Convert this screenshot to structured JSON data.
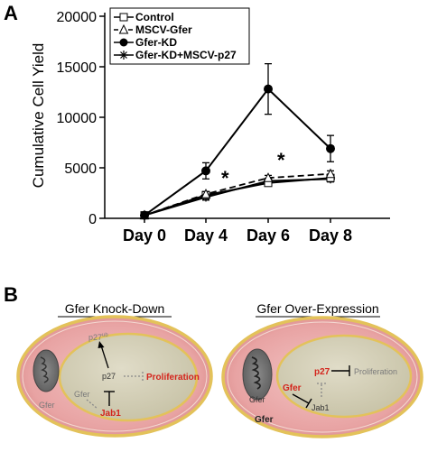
{
  "panel_a": {
    "letter": "A",
    "legend": [
      "Control",
      "MSCV-Gfer",
      "Gfer-KD",
      "Gfer-KD+MSCV-p27"
    ],
    "annotations": [
      "*",
      "*"
    ]
  },
  "panel_b": {
    "letter": "B",
    "left_cell": {
      "title": "Gfer Knock-Down",
      "p27ub": "p27",
      "p27ub_sup": "ub",
      "p27": "p27",
      "proliferation": "Proliferation",
      "gfer_small": "Gfer",
      "gfer_outer": "Gfer",
      "jab1": "Jab1"
    },
    "right_cell": {
      "title": "Gfer Over-Expression",
      "gfer_mito": "Gfer",
      "gfer_outer": "Gfer",
      "gfer_nucleus": "Gfer",
      "p27": "p27",
      "proliferation": "Proliferation",
      "jab1": "Jab1"
    }
  },
  "chart_data": {
    "type": "line",
    "ylabel": "Cumulative Cell Yield",
    "xlabel": "",
    "categories": [
      "Day 0",
      "Day 4",
      "Day 6",
      "Day 8"
    ],
    "ylim": [
      0,
      20000
    ],
    "yticks": [
      0,
      5000,
      10000,
      15000,
      20000
    ],
    "grid": false,
    "legend_position": "top-left",
    "series": [
      {
        "name": "Control",
        "marker": "open-square",
        "dash": "solid",
        "values": [
          300,
          2300,
          3500,
          4000
        ],
        "errors": [
          100,
          300,
          250,
          300
        ]
      },
      {
        "name": "MSCV-Gfer",
        "marker": "open-triangle",
        "dash": "dashed",
        "values": [
          300,
          2400,
          4000,
          4400
        ],
        "errors": [
          100,
          250,
          250,
          300
        ]
      },
      {
        "name": "Gfer-KD",
        "marker": "filled-circle",
        "dash": "solid",
        "values": [
          300,
          4700,
          12800,
          6900
        ],
        "errors": [
          100,
          800,
          2500,
          1300
        ]
      },
      {
        "name": "Gfer-KD+MSCV-p27",
        "marker": "star",
        "dash": "solid",
        "values": [
          300,
          2100,
          3700,
          3900
        ],
        "errors": [
          100,
          300,
          250,
          300
        ]
      }
    ]
  }
}
